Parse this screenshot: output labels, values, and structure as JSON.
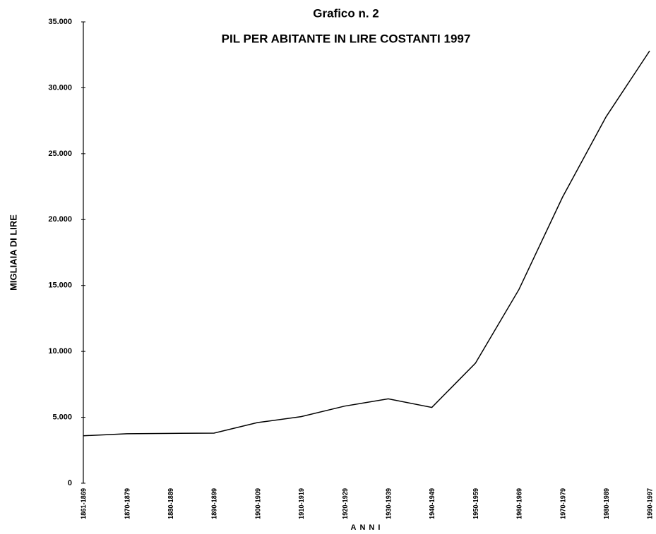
{
  "chart_data": {
    "type": "line",
    "title": "Grafico n. 2",
    "subtitle": "PIL PER ABITANTE IN LIRE COSTANTI 1997",
    "x_label": "ANNI",
    "y_label": "MIGLIAIA DI LIRE",
    "categories": [
      "1861-1869",
      "1870-1879",
      "1880-1889",
      "1890-1899",
      "1900-1909",
      "1910-1919",
      "1920-1929",
      "1930-1939",
      "1940-1949",
      "1950-1959",
      "1960-1969",
      "1970-1979",
      "1980-1989",
      "1990-1997"
    ],
    "series": [
      {
        "name": "PIL per abitante",
        "color": "#000000",
        "values": [
          3600,
          3750,
          3780,
          3800,
          4600,
          5050,
          5850,
          6400,
          5750,
          9100,
          14700,
          21700,
          27800,
          32800
        ]
      }
    ],
    "ylim": [
      0,
      35000
    ],
    "yticks": [
      0,
      {
        "value": 5000,
        "label": "5.000"
      },
      {
        "value": 10000,
        "label": "10.000"
      },
      {
        "value": 15000,
        "label": "15.000"
      },
      {
        "value": 20000,
        "label": "20.000"
      },
      {
        "value": 25000,
        "label": "25.000"
      },
      {
        "value": 30000,
        "label": "30.000"
      },
      {
        "value": 35000,
        "label": "35.000"
      }
    ],
    "grid": false
  }
}
